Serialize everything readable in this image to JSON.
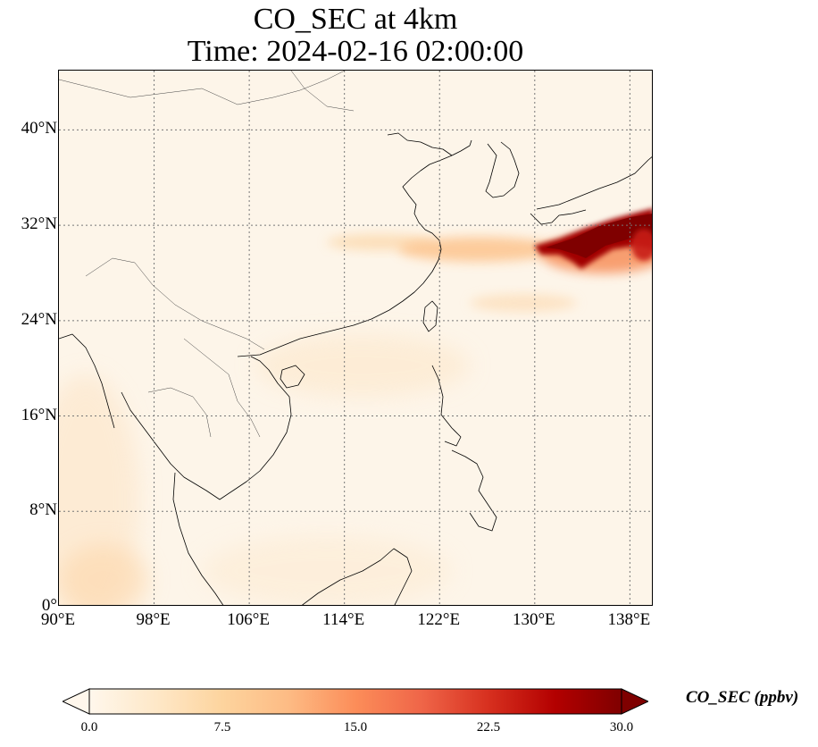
{
  "title": {
    "line1": "CO_SEC at 4km",
    "line2": "Time: 2024-02-16 02:00:00"
  },
  "map": {
    "projection": "PlateCarree",
    "lon_range": [
      90,
      140
    ],
    "lat_range": [
      0,
      45
    ],
    "gridlines": "dotted",
    "lat_ticks": [
      {
        "value": 0,
        "label": "0°"
      },
      {
        "value": 8,
        "label": "8°N"
      },
      {
        "value": 16,
        "label": "16°N"
      },
      {
        "value": 24,
        "label": "24°N"
      },
      {
        "value": 32,
        "label": "32°N"
      },
      {
        "value": 40,
        "label": "40°N"
      }
    ],
    "lon_ticks": [
      {
        "value": 90,
        "label": "90°E"
      },
      {
        "value": 98,
        "label": "98°E"
      },
      {
        "value": 106,
        "label": "106°E"
      },
      {
        "value": 114,
        "label": "114°E"
      },
      {
        "value": 122,
        "label": "122°E"
      },
      {
        "value": 130,
        "label": "130°E"
      },
      {
        "value": 138,
        "label": "138°E"
      }
    ],
    "plume": {
      "description_level": "maximum concentration band east of Japan near 30-33°N",
      "max_region_lon": [
        130,
        140
      ],
      "max_region_lat": [
        28,
        34
      ]
    }
  },
  "colorbar": {
    "label": "CO_SEC (ppbv)",
    "colormap": "OrRd",
    "min": 0.0,
    "max": 30.0,
    "extend": "both",
    "ticks": [
      {
        "value": 0.0,
        "label": "0.0"
      },
      {
        "value": 7.5,
        "label": "7.5"
      },
      {
        "value": 15.0,
        "label": "15.0"
      },
      {
        "value": 22.5,
        "label": "22.5"
      },
      {
        "value": 30.0,
        "label": "30.0"
      }
    ],
    "colors": [
      "#fff7ec",
      "#fee8c8",
      "#fdd49e",
      "#fdbb84",
      "#fc8d59",
      "#ef6548",
      "#d7301f",
      "#b30000",
      "#7f0000"
    ]
  }
}
